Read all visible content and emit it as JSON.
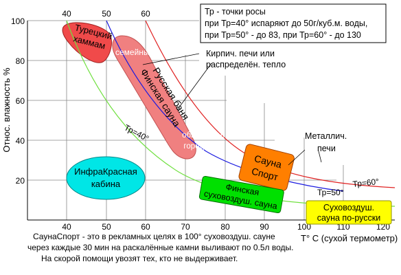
{
  "axes": {
    "y_title": "Относ. влажность %",
    "x_title": "T° С (сухой термометр)",
    "x_ticks": [
      "40",
      "50",
      "60",
      "70",
      "80",
      "90",
      "100",
      "110",
      "120"
    ],
    "x_ticks_top": [
      "40",
      "50",
      "60"
    ],
    "y_ticks": [
      "100",
      "80",
      "60",
      "40",
      "20"
    ]
  },
  "infobox": {
    "line1": "Тр - точки росы",
    "line2": "при Тр=40° испаряют до 50г/куб.м. воды,",
    "line3": "при Тр=50° - до 83, при Тр=60° - до 130"
  },
  "curves": {
    "tr40": "Тр=40°",
    "tr50": "Тр=50°",
    "tr60": "Тр=60°"
  },
  "zones": {
    "turkish": [
      "Турецкий",
      "хаммам"
    ],
    "russian_banya": [
      "Русская баня",
      "Финская сауна"
    ],
    "semeinye": "семейные",
    "public": [
      "обществен.",
      "городские"
    ],
    "infrared": [
      "ИнфраКрасная",
      "кабина"
    ],
    "saunasport": [
      "Сауна",
      "Спорт"
    ],
    "finnish_dry": [
      "Финская",
      "суховоздуш. сауна"
    ],
    "dry_russian": [
      "Суховоздуш.",
      "сауна по-русски"
    ]
  },
  "callouts": {
    "brick": [
      "Кирпич. печи или",
      "распределён. тепло"
    ],
    "metal": [
      "Металлич.",
      "печи"
    ]
  },
  "footnote": {
    "line1": "СаунаСпорт - это в рекламных целях в 100° суховоздуш. сауне",
    "line2": "через каждые 30 мин на раскалённые камни выливают по 0.5л воды.",
    "line3": "На скорой помощи увозят тех, кто не выдерживает."
  },
  "colors": {
    "grid": "#888888",
    "curve_red": "#e02020",
    "curve_blue": "#1a1ae0",
    "curve_green": "#70e040",
    "turkish": "#f04a4a",
    "russian_banya": "#f08080",
    "saunasport": "#ff7f00",
    "infrared": "#00e6e6",
    "finnish_dry": "#00e000",
    "dry_russian": "#ffff00"
  }
}
